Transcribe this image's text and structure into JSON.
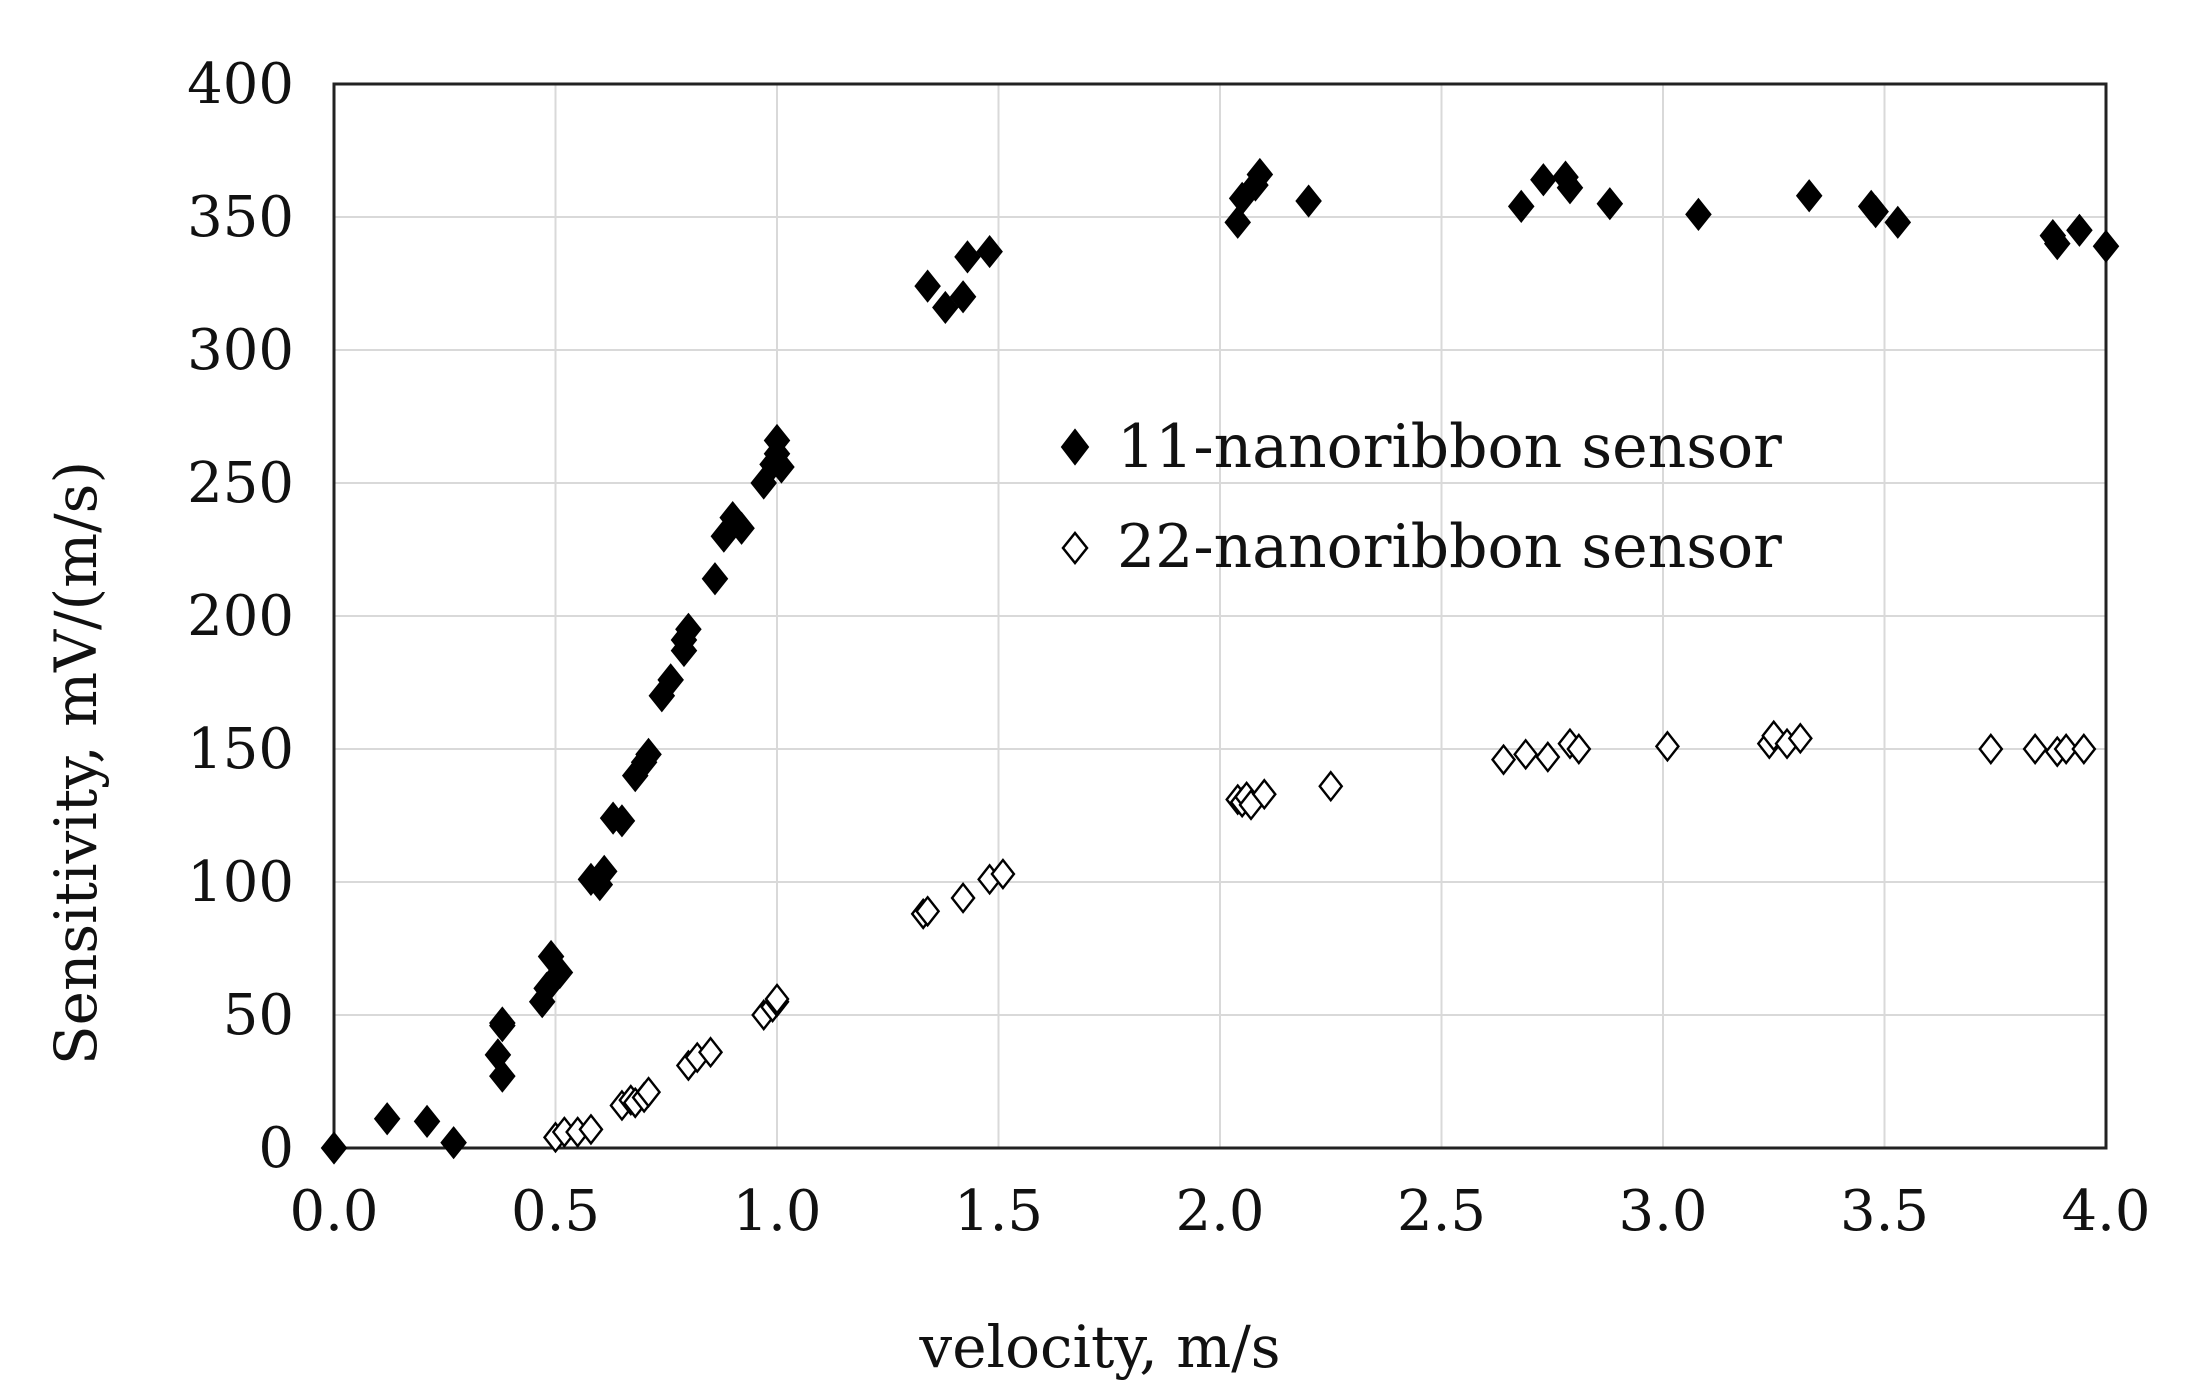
{
  "chart_data": {
    "type": "scatter",
    "title": "",
    "xlabel": "velocity, m/s",
    "ylabel": "Sensitivity, mV/(m/s)",
    "xlim": [
      0,
      4
    ],
    "ylim": [
      0,
      400
    ],
    "xticks": [
      "0.0",
      "0.5",
      "1.0",
      "1.5",
      "2.0",
      "2.5",
      "3.0",
      "3.5",
      "4.0"
    ],
    "yticks": [
      "0",
      "50",
      "100",
      "150",
      "200",
      "250",
      "300",
      "350",
      "400"
    ],
    "grid": true,
    "legend_position": "center-right",
    "series": [
      {
        "name": "11-nanoribbon sensor",
        "marker": "filled-diamond",
        "color": "#000000",
        "points": [
          [
            0.0,
            0
          ],
          [
            0.12,
            11
          ],
          [
            0.21,
            10
          ],
          [
            0.27,
            2
          ],
          [
            0.37,
            35
          ],
          [
            0.38,
            27
          ],
          [
            0.38,
            46
          ],
          [
            0.38,
            47
          ],
          [
            0.47,
            55
          ],
          [
            0.48,
            60
          ],
          [
            0.49,
            72
          ],
          [
            0.51,
            66
          ],
          [
            0.58,
            101
          ],
          [
            0.6,
            99
          ],
          [
            0.61,
            104
          ],
          [
            0.63,
            124
          ],
          [
            0.65,
            123
          ],
          [
            0.68,
            140
          ],
          [
            0.7,
            145
          ],
          [
            0.71,
            148
          ],
          [
            0.74,
            170
          ],
          [
            0.76,
            176
          ],
          [
            0.79,
            187
          ],
          [
            0.79,
            191
          ],
          [
            0.8,
            195
          ],
          [
            0.86,
            214
          ],
          [
            0.88,
            230
          ],
          [
            0.9,
            237
          ],
          [
            0.92,
            233
          ],
          [
            0.97,
            250
          ],
          [
            0.99,
            257
          ],
          [
            1.0,
            261
          ],
          [
            1.0,
            266
          ],
          [
            1.01,
            256
          ],
          [
            1.34,
            324
          ],
          [
            1.38,
            316
          ],
          [
            1.42,
            320
          ],
          [
            1.43,
            335
          ],
          [
            1.48,
            337
          ],
          [
            2.04,
            348
          ],
          [
            2.05,
            357
          ],
          [
            2.08,
            362
          ],
          [
            2.09,
            366
          ],
          [
            2.2,
            356
          ],
          [
            2.68,
            354
          ],
          [
            2.73,
            364
          ],
          [
            2.78,
            365
          ],
          [
            2.79,
            361
          ],
          [
            2.88,
            355
          ],
          [
            3.08,
            351
          ],
          [
            3.33,
            358
          ],
          [
            3.47,
            354
          ],
          [
            3.48,
            352
          ],
          [
            3.53,
            348
          ],
          [
            3.88,
            343
          ],
          [
            3.89,
            340
          ],
          [
            3.94,
            345
          ],
          [
            4.0,
            339
          ]
        ]
      },
      {
        "name": "22-nanoribbon sensor",
        "marker": "hollow-diamond",
        "color": "#000000",
        "points": [
          [
            0.5,
            4
          ],
          [
            0.52,
            6
          ],
          [
            0.55,
            6
          ],
          [
            0.58,
            7
          ],
          [
            0.65,
            16
          ],
          [
            0.67,
            18
          ],
          [
            0.68,
            17
          ],
          [
            0.7,
            19
          ],
          [
            0.71,
            21
          ],
          [
            0.8,
            31
          ],
          [
            0.82,
            34
          ],
          [
            0.85,
            36
          ],
          [
            0.97,
            50
          ],
          [
            0.99,
            53
          ],
          [
            1.0,
            55
          ],
          [
            1.0,
            56
          ],
          [
            1.33,
            88
          ],
          [
            1.34,
            89
          ],
          [
            1.42,
            94
          ],
          [
            1.48,
            101
          ],
          [
            1.51,
            103
          ],
          [
            2.04,
            131
          ],
          [
            2.05,
            130
          ],
          [
            2.06,
            132
          ],
          [
            2.07,
            129
          ],
          [
            2.1,
            133
          ],
          [
            2.25,
            136
          ],
          [
            2.64,
            146
          ],
          [
            2.69,
            148
          ],
          [
            2.74,
            147
          ],
          [
            2.79,
            152
          ],
          [
            2.81,
            150
          ],
          [
            3.01,
            151
          ],
          [
            3.24,
            152
          ],
          [
            3.25,
            155
          ],
          [
            3.28,
            152
          ],
          [
            3.31,
            154
          ],
          [
            3.74,
            150
          ],
          [
            3.84,
            150
          ],
          [
            3.89,
            149
          ],
          [
            3.91,
            150
          ],
          [
            3.95,
            150
          ]
        ]
      }
    ]
  }
}
